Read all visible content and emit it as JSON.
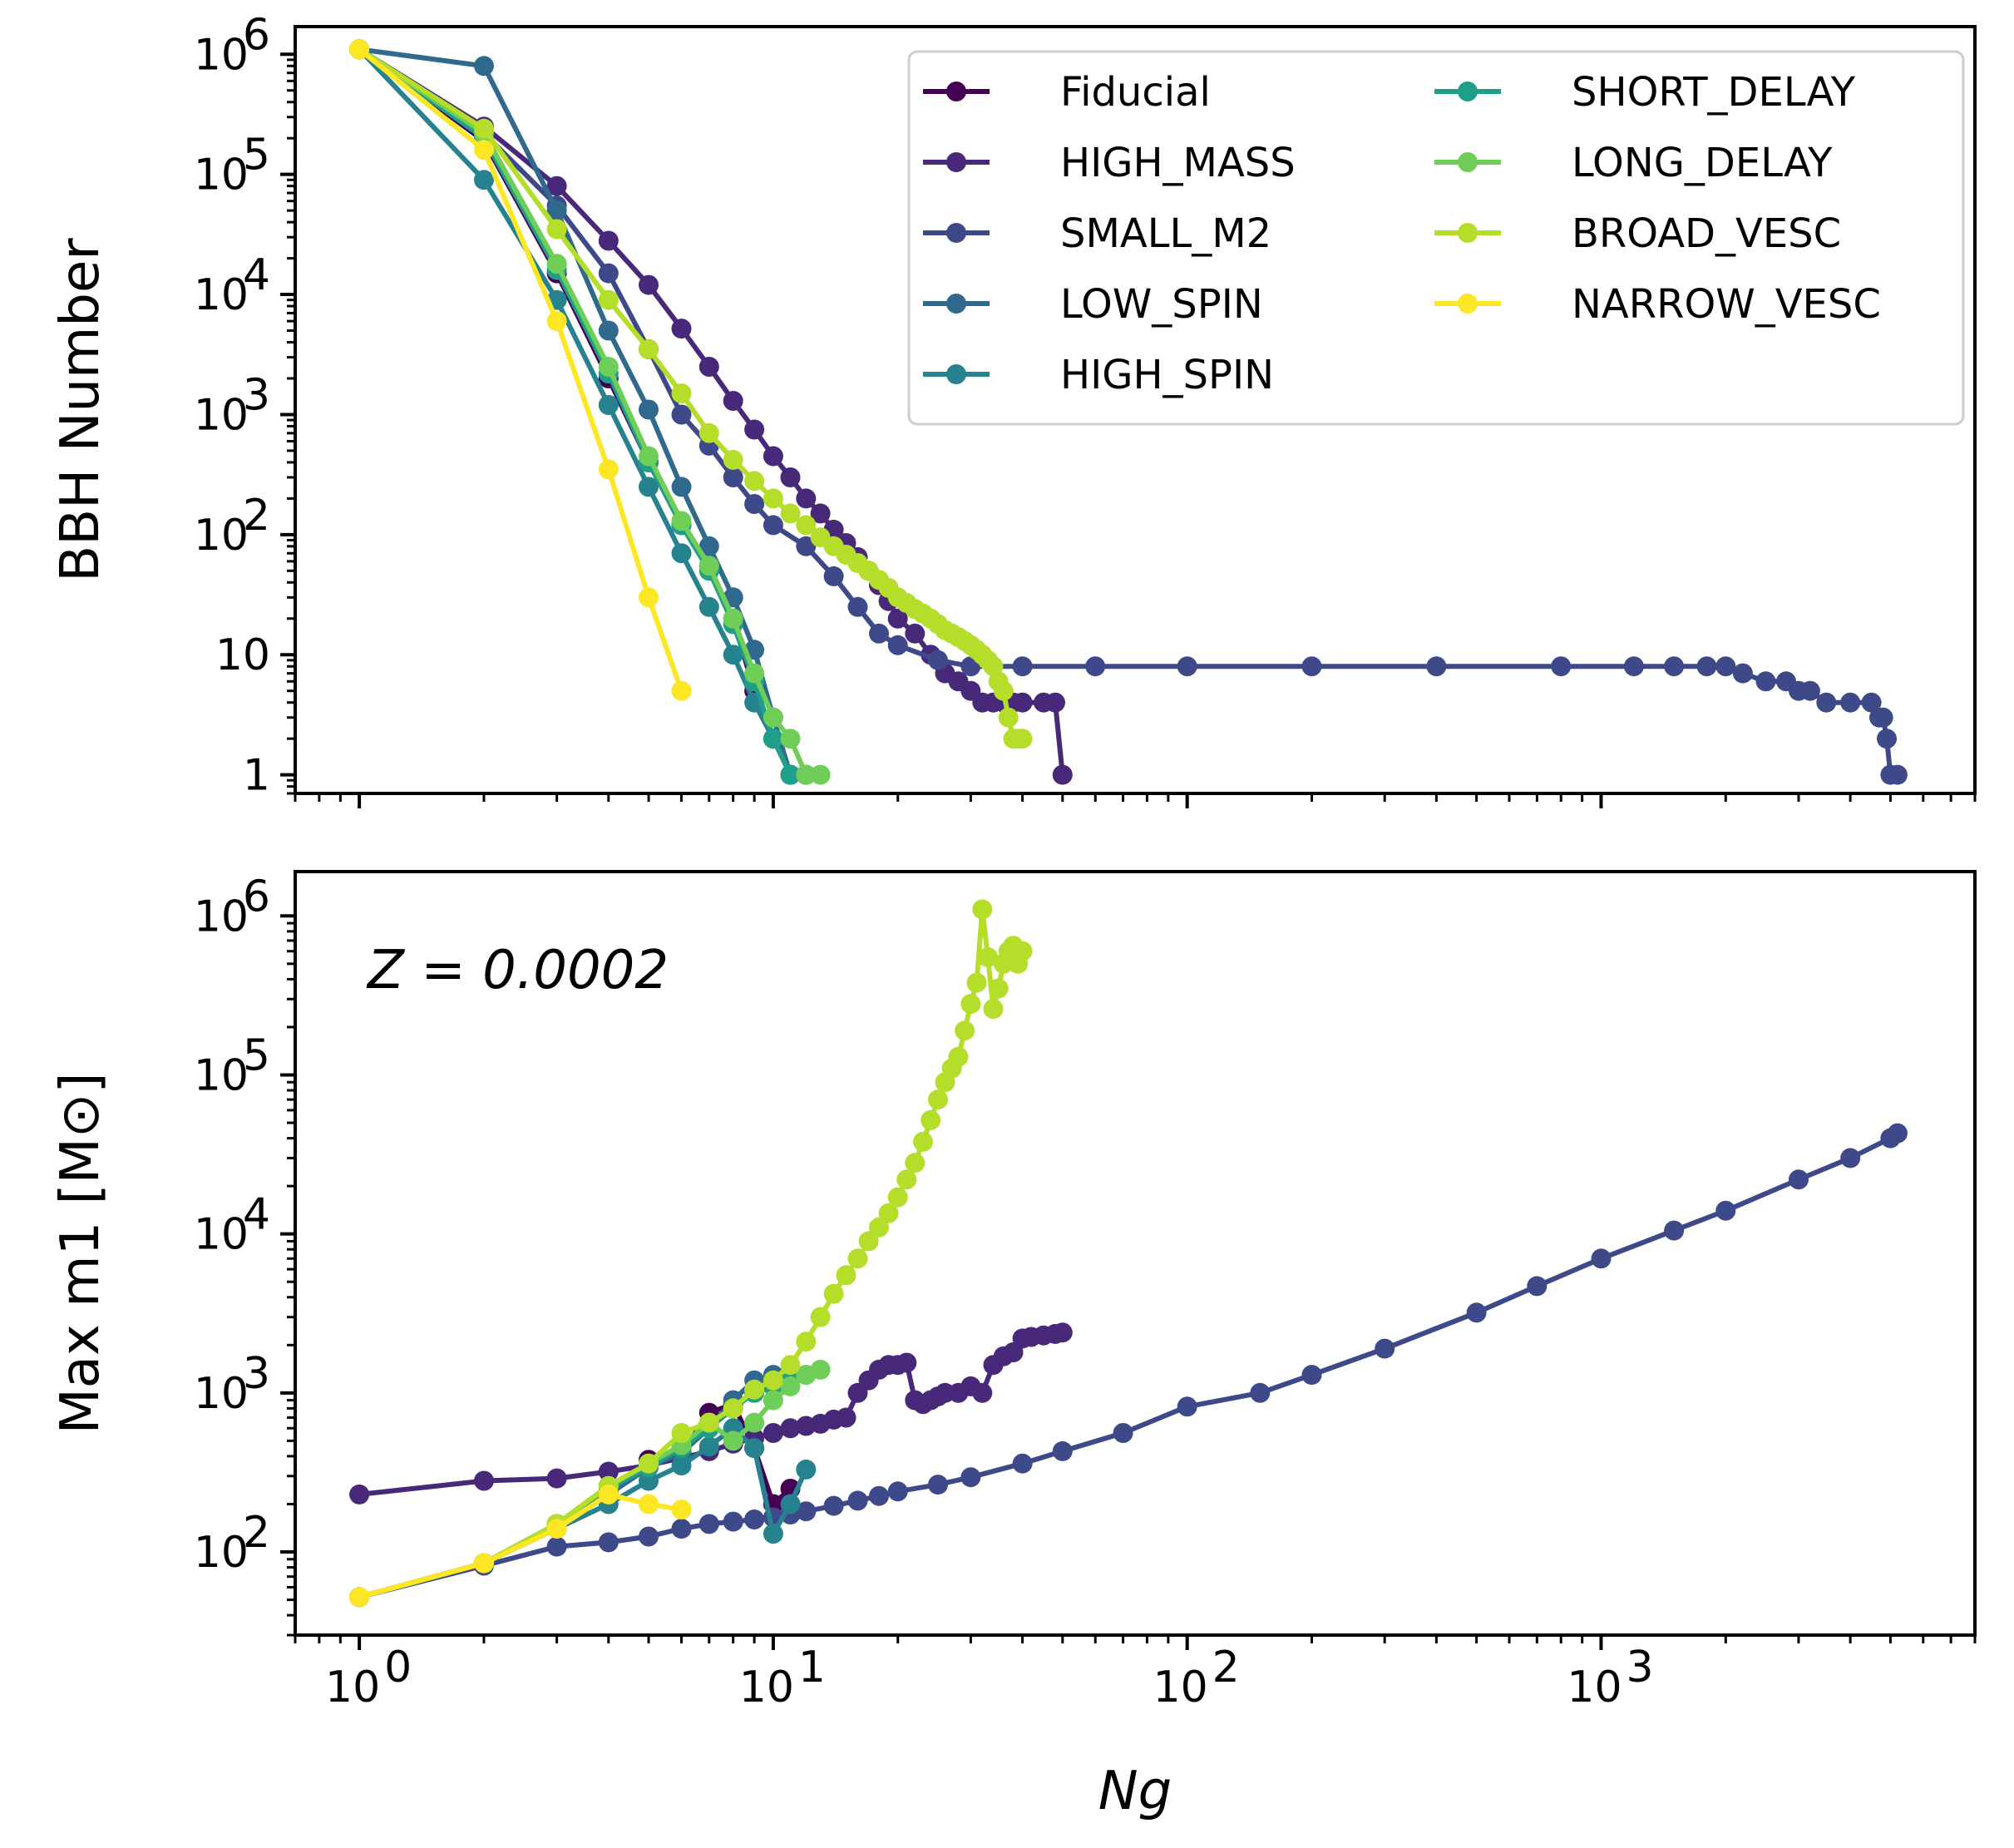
{
  "chart_data": [
    {
      "type": "line",
      "xscale": "log",
      "yscale": "log",
      "xlim": [
        0.7,
        8000
      ],
      "ylim": [
        0.7,
        1700000
      ],
      "xlabel": "",
      "ylabel": "BBH Number",
      "grid": false,
      "legend_position": "top-right",
      "yticks": [
        {
          "value": 1,
          "label": "1"
        },
        {
          "value": 10,
          "label": "10"
        },
        {
          "value": 100,
          "label": "10",
          "exp": "2"
        },
        {
          "value": 1000,
          "label": "10",
          "exp": "3"
        },
        {
          "value": 10000,
          "label": "10",
          "exp": "4"
        },
        {
          "value": 100000,
          "label": "10",
          "exp": "5"
        },
        {
          "value": 1000000,
          "label": "10",
          "exp": "6"
        }
      ],
      "series": [
        {
          "name": "Fiducial",
          "color": "#440154",
          "x": [
            1,
            2,
            3,
            4,
            5,
            6,
            7,
            8,
            9,
            10,
            11
          ],
          "y": [
            1100000,
            190000,
            15000,
            2000,
            400,
            120,
            55,
            20,
            5,
            2,
            1
          ]
        },
        {
          "name": "HIGH_MASS",
          "color": "#482878",
          "x": [
            1,
            2,
            3,
            4,
            5,
            6,
            7,
            8,
            9,
            10,
            11,
            12,
            13,
            14,
            15,
            16,
            17,
            18,
            19,
            20,
            22,
            24,
            26,
            28,
            30,
            32,
            34,
            36,
            38,
            40,
            45,
            48,
            50
          ],
          "y": [
            1100000,
            250000,
            80000,
            28000,
            12000,
            5200,
            2500,
            1300,
            750,
            450,
            300,
            200,
            150,
            110,
            85,
            65,
            50,
            38,
            28,
            20,
            15,
            10,
            7,
            6,
            5,
            4,
            4,
            4,
            4,
            4,
            4,
            4,
            1
          ]
        },
        {
          "name": "SMALL_M2",
          "color": "#3e4989",
          "x": [
            1,
            2,
            3,
            4,
            5,
            6,
            7,
            8,
            9,
            10,
            12,
            14,
            16,
            18,
            20,
            25,
            30,
            40,
            60,
            100,
            200,
            400,
            800,
            1200,
            1500,
            1800,
            2000,
            2200,
            2500,
            2800,
            3000,
            3200,
            3500,
            4000,
            4500,
            4700,
            4800,
            4900,
            5000,
            5200
          ],
          "y": [
            1100000,
            220000,
            55000,
            15000,
            3500,
            1000,
            550,
            300,
            180,
            120,
            80,
            45,
            25,
            15,
            12,
            9,
            8,
            8,
            8,
            8,
            8,
            8,
            8,
            8,
            8,
            8,
            8,
            7,
            6,
            6,
            5,
            5,
            4,
            4,
            4,
            3,
            3,
            2,
            1,
            1
          ]
        },
        {
          "name": "LOW_SPIN",
          "color": "#31688e",
          "x": [
            1,
            2,
            3,
            4,
            5,
            6,
            7,
            8,
            9,
            10,
            11
          ],
          "y": [
            1100000,
            800000,
            50000,
            5000,
            1100,
            250,
            80,
            30,
            11,
            3,
            1
          ]
        },
        {
          "name": "HIGH_SPIN",
          "color": "#26828e",
          "x": [
            1,
            2,
            3,
            4,
            5,
            6,
            7,
            8,
            9,
            10,
            11,
            12
          ],
          "y": [
            1100000,
            90000,
            9000,
            1200,
            250,
            70,
            25,
            10,
            4,
            2,
            1,
            1
          ]
        },
        {
          "name": "SHORT_DELAY",
          "color": "#1f9e89",
          "x": [
            1,
            2,
            3,
            4,
            5,
            6,
            7,
            8,
            9,
            10,
            11,
            12
          ],
          "y": [
            1100000,
            200000,
            16000,
            2200,
            400,
            120,
            50,
            18,
            6,
            2,
            1,
            1
          ]
        },
        {
          "name": "LONG_DELAY",
          "color": "#6ece58",
          "x": [
            1,
            2,
            3,
            4,
            5,
            6,
            7,
            8,
            9,
            10,
            11,
            12,
            13
          ],
          "y": [
            1100000,
            220000,
            18000,
            2500,
            450,
            130,
            55,
            20,
            7,
            3,
            2,
            1,
            1
          ]
        },
        {
          "name": "BROAD_VESC",
          "color": "#b5de2b",
          "x": [
            1,
            2,
            3,
            4,
            5,
            6,
            7,
            8,
            9,
            10,
            11,
            12,
            13,
            14,
            15,
            16,
            17,
            18,
            19,
            20,
            21,
            22,
            23,
            24,
            25,
            26,
            27,
            28,
            29,
            30,
            31,
            32,
            33,
            34,
            35,
            36,
            37,
            38,
            39,
            40
          ],
          "y": [
            1100000,
            240000,
            35000,
            9000,
            3500,
            1500,
            700,
            420,
            280,
            200,
            150,
            120,
            95,
            80,
            68,
            58,
            50,
            42,
            36,
            30,
            27,
            24,
            22,
            20,
            18,
            16,
            15,
            14,
            13,
            12,
            11,
            10,
            9,
            8,
            6,
            5,
            3,
            2,
            2,
            2
          ]
        },
        {
          "name": "NARROW_VESC",
          "color": "#fde725",
          "x": [
            1,
            2,
            3,
            4,
            5,
            6
          ],
          "y": [
            1100000,
            160000,
            6000,
            350,
            30,
            5
          ]
        }
      ]
    },
    {
      "type": "line",
      "xscale": "log",
      "yscale": "log",
      "xlim": [
        0.7,
        8000
      ],
      "ylim": [
        30,
        1900000
      ],
      "xlabel": "Ng",
      "ylabel": "Max m1 [M⊙]",
      "grid": false,
      "annotation": "Z = 0.0002",
      "yticks": [
        {
          "value": 100,
          "label": "10",
          "exp": "2"
        },
        {
          "value": 1000,
          "label": "10",
          "exp": "3"
        },
        {
          "value": 10000,
          "label": "10",
          "exp": "4"
        },
        {
          "value": 100000,
          "label": "10",
          "exp": "5"
        },
        {
          "value": 1000000,
          "label": "10",
          "exp": "6"
        }
      ],
      "xticks": [
        {
          "value": 1,
          "label": "10",
          "exp": "0"
        },
        {
          "value": 10,
          "label": "10",
          "exp": "1"
        },
        {
          "value": 100,
          "label": "10",
          "exp": "2"
        },
        {
          "value": 1000,
          "label": "10",
          "exp": "3"
        }
      ],
      "series": [
        {
          "name": "Fiducial",
          "color": "#440154",
          "x": [
            1,
            2,
            3,
            4,
            5,
            6,
            7,
            8,
            9,
            10,
            11
          ],
          "y": [
            52,
            85,
            145,
            240,
            380,
            420,
            750,
            850,
            450,
            200,
            250
          ]
        },
        {
          "name": "HIGH_MASS",
          "color": "#482878",
          "x": [
            1,
            2,
            3,
            4,
            5,
            6,
            7,
            8,
            9,
            10,
            11,
            12,
            13,
            14,
            15,
            16,
            17,
            18,
            19,
            20,
            21,
            22,
            23,
            24,
            25,
            26,
            28,
            30,
            32,
            34,
            36,
            38,
            40,
            42,
            45,
            48,
            50
          ],
          "y": [
            230,
            280,
            290,
            320,
            350,
            390,
            430,
            480,
            520,
            560,
            600,
            620,
            640,
            680,
            700,
            1000,
            1200,
            1400,
            1500,
            1500,
            1550,
            900,
            850,
            900,
            950,
            1000,
            1000,
            1100,
            1000,
            1500,
            1700,
            1800,
            2200,
            2250,
            2300,
            2350,
            2400
          ]
        },
        {
          "name": "SMALL_M2",
          "color": "#3e4989",
          "x": [
            1,
            2,
            3,
            4,
            5,
            6,
            7,
            8,
            9,
            10,
            11,
            12,
            14,
            16,
            18,
            20,
            25,
            30,
            40,
            50,
            70,
            100,
            150,
            200,
            300,
            500,
            700,
            1000,
            1500,
            2000,
            3000,
            4000,
            5000,
            5200
          ],
          "y": [
            52,
            82,
            108,
            115,
            125,
            140,
            150,
            155,
            160,
            165,
            172,
            180,
            195,
            210,
            225,
            240,
            265,
            295,
            360,
            430,
            560,
            820,
            1000,
            1300,
            1900,
            3200,
            4700,
            7000,
            10500,
            14000,
            22000,
            30000,
            40000,
            43000
          ]
        },
        {
          "name": "LOW_SPIN",
          "color": "#31688e",
          "x": [
            1,
            2,
            3,
            4,
            5,
            6,
            7,
            8,
            9,
            10,
            11
          ],
          "y": [
            52,
            85,
            150,
            230,
            340,
            420,
            600,
            900,
            1200,
            1300,
            1350
          ]
        },
        {
          "name": "HIGH_SPIN",
          "color": "#26828e",
          "x": [
            1,
            2,
            3,
            4,
            5,
            6,
            7,
            8,
            9,
            10,
            11,
            12
          ],
          "y": [
            52,
            85,
            140,
            200,
            280,
            350,
            460,
            600,
            450,
            130,
            200,
            330
          ]
        },
        {
          "name": "SHORT_DELAY",
          "color": "#1f9e89",
          "x": [
            1,
            2,
            3,
            4,
            5,
            6,
            7,
            8,
            9,
            10,
            11,
            12
          ],
          "y": [
            52,
            85,
            150,
            250,
            340,
            450,
            600,
            800,
            1000,
            1100,
            1200,
            1300
          ]
        },
        {
          "name": "LONG_DELAY",
          "color": "#6ece58",
          "x": [
            1,
            2,
            3,
            4,
            5,
            6,
            7,
            8,
            9,
            10,
            11,
            12,
            13
          ],
          "y": [
            52,
            85,
            150,
            260,
            360,
            470,
            650,
            500,
            650,
            900,
            1100,
            1300,
            1400
          ]
        },
        {
          "name": "BROAD_VESC",
          "color": "#b5de2b",
          "x": [
            1,
            2,
            3,
            4,
            5,
            6,
            7,
            8,
            9,
            10,
            11,
            12,
            13,
            14,
            15,
            16,
            17,
            18,
            19,
            20,
            21,
            22,
            23,
            24,
            25,
            26,
            27,
            28,
            29,
            30,
            31,
            32,
            33,
            34,
            35,
            36,
            37,
            38,
            39,
            40
          ],
          "y": [
            52,
            85,
            150,
            260,
            360,
            560,
            650,
            800,
            1050,
            1200,
            1500,
            2100,
            3000,
            4200,
            5500,
            7000,
            9000,
            11000,
            13500,
            17000,
            22000,
            28000,
            38000,
            52000,
            70000,
            90000,
            110000,
            130000,
            190000,
            280000,
            380000,
            1100000,
            550000,
            260000,
            350000,
            500000,
            600000,
            650000,
            500000,
            600000
          ]
        },
        {
          "name": "NARROW_VESC",
          "color": "#fde725",
          "x": [
            1,
            2,
            3,
            4,
            5,
            6
          ],
          "y": [
            52,
            85,
            140,
            230,
            200,
            185
          ]
        }
      ]
    }
  ]
}
